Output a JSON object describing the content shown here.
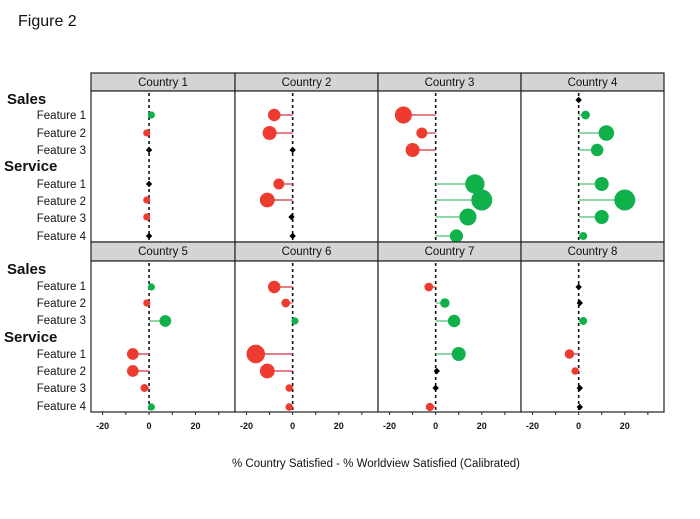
{
  "chart_data": {
    "type": "scatter",
    "subtype": "faceted-lollipop",
    "title": "Figure 2",
    "xlabel": "% Country Satisfied - % Worldview Satisfied (Calibrated)",
    "ylabel": "",
    "xlim": [
      -25,
      37
    ],
    "x_ticks": [
      -20,
      0,
      20
    ],
    "x_minor_ticks": [
      -20,
      -10,
      0,
      10,
      20,
      30
    ],
    "reference_line": {
      "x": 0,
      "style": "dashed",
      "color": "#111111"
    },
    "grid": false,
    "colors": {
      "positive": "#10b04a",
      "negative": "#ee3b2f",
      "neutral": "#000000",
      "positive_stem": "#6cc888",
      "negative_stem": "#d9535c",
      "strip_fill": "#d4d4d4",
      "panel_border": "#222222"
    },
    "row_groups": [
      {
        "group": "Sales",
        "rows": [
          "Feature 1",
          "Feature 2",
          "Feature 3"
        ]
      },
      {
        "group": "Service",
        "rows": [
          "Feature 1",
          "Feature 2",
          "Feature 3",
          "Feature 4"
        ]
      }
    ],
    "panels": [
      {
        "name": "Country 1",
        "sales_header": null,
        "values": [
          1,
          -1,
          0,
          0,
          -1,
          -1,
          0
        ]
      },
      {
        "name": "Country 2",
        "sales_header": null,
        "values": [
          -8,
          -10,
          0,
          -6,
          -11,
          -0.5,
          0
        ]
      },
      {
        "name": "Country 3",
        "sales_header": null,
        "values": [
          -14,
          -6,
          -10,
          17,
          20,
          14,
          9
        ]
      },
      {
        "name": "Country 4",
        "sales_header": 0,
        "values": [
          3,
          12,
          8,
          10,
          20,
          10,
          2
        ]
      },
      {
        "name": "Country 5",
        "sales_header": null,
        "values": [
          1,
          -1,
          7,
          -7,
          -7,
          -2,
          1
        ]
      },
      {
        "name": "Country 6",
        "sales_header": null,
        "values": [
          -8,
          -3,
          1,
          -16,
          -11,
          -1.5,
          -1.5
        ]
      },
      {
        "name": "Country 7",
        "sales_header": null,
        "values": [
          -3,
          4,
          8,
          10,
          0.5,
          0,
          -2.5
        ]
      },
      {
        "name": "Country 8",
        "sales_header": null,
        "values": [
          0,
          0.5,
          2,
          -4,
          -1.5,
          0.5,
          0.5
        ]
      }
    ],
    "marker_size_note": "Marker size grows with |value|; near-zero values drawn as small black diamonds",
    "legend": null
  }
}
